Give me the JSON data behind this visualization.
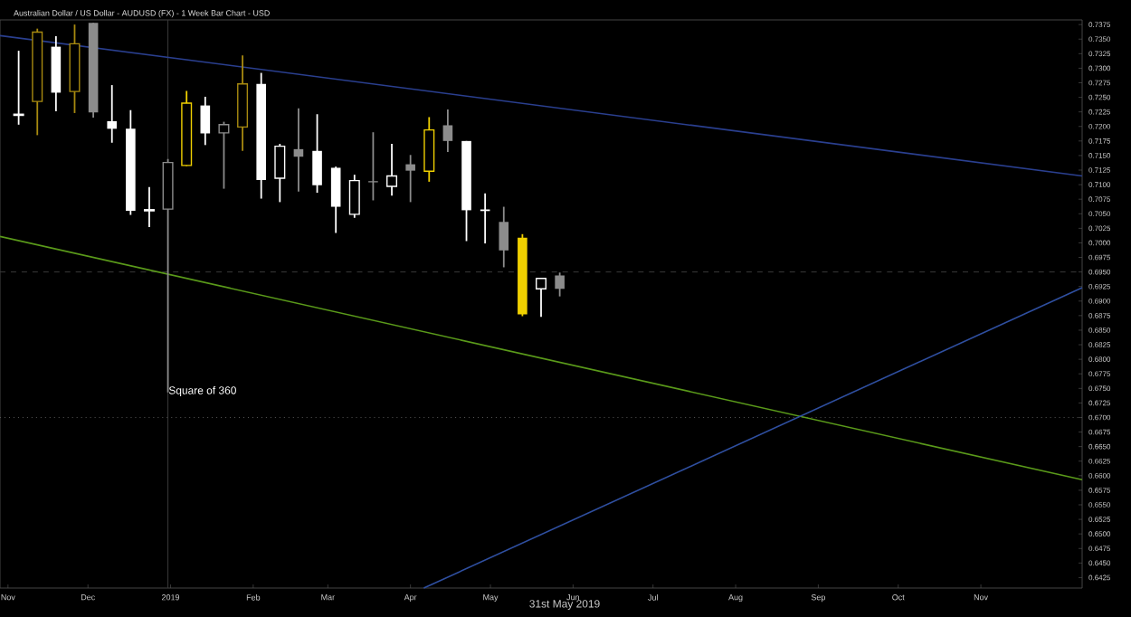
{
  "chart_data": {
    "type": "candlestick",
    "title": "Australian Dollar / US Dollar - AUDUSD (FX) - 1 Week Bar Chart - USD",
    "x": [
      "2018-11-05",
      "2018-11-12",
      "2018-11-19",
      "2018-11-26",
      "2018-12-03",
      "2018-12-10",
      "2018-12-17",
      "2018-12-24",
      "2018-12-31",
      "2019-01-07",
      "2019-01-14",
      "2019-01-21",
      "2019-01-28",
      "2019-02-04",
      "2019-02-11",
      "2019-02-18",
      "2019-02-25",
      "2019-03-04",
      "2019-03-11",
      "2019-03-18",
      "2019-03-25",
      "2019-04-01",
      "2019-04-08",
      "2019-04-15",
      "2019-04-22",
      "2019-04-29",
      "2019-05-06",
      "2019-05-13",
      "2019-05-20",
      "2019-05-27"
    ],
    "ohlc": [
      [
        0.7219,
        0.733,
        0.7203,
        0.7221
      ],
      [
        0.7243,
        0.7368,
        0.7185,
        0.7362
      ],
      [
        0.7337,
        0.7355,
        0.7226,
        0.7258
      ],
      [
        0.726,
        0.7375,
        0.7223,
        0.7342
      ],
      [
        0.7378,
        0.7378,
        0.7215,
        0.7224
      ],
      [
        0.7209,
        0.7271,
        0.7172,
        0.7196
      ],
      [
        0.7196,
        0.7228,
        0.7048,
        0.7055
      ],
      [
        0.7055,
        0.7096,
        0.7027,
        0.7057
      ],
      [
        0.7058,
        0.7144,
        0.6743,
        0.7138
      ],
      [
        0.7133,
        0.7261,
        0.7132,
        0.724
      ],
      [
        0.7236,
        0.7251,
        0.7168,
        0.7188
      ],
      [
        0.7189,
        0.7208,
        0.7093,
        0.7203
      ],
      [
        0.7199,
        0.7322,
        0.7158,
        0.7273
      ],
      [
        0.7273,
        0.7292,
        0.7076,
        0.7108
      ],
      [
        0.7111,
        0.717,
        0.707,
        0.7166
      ],
      [
        0.7161,
        0.7231,
        0.7088,
        0.7148
      ],
      [
        0.7158,
        0.7221,
        0.7086,
        0.7099
      ],
      [
        0.7129,
        0.7131,
        0.7017,
        0.7062
      ],
      [
        0.7049,
        0.7117,
        0.7043,
        0.7107
      ],
      [
        0.7106,
        0.719,
        0.7073,
        0.7104
      ],
      [
        0.7097,
        0.717,
        0.7081,
        0.7115
      ],
      [
        0.7135,
        0.7151,
        0.707,
        0.7124
      ],
      [
        0.7123,
        0.7216,
        0.7105,
        0.7194
      ],
      [
        0.7202,
        0.7229,
        0.7156,
        0.7175
      ],
      [
        0.7175,
        0.7175,
        0.7003,
        0.7056
      ],
      [
        0.7056,
        0.7085,
        0.6999,
        0.7056
      ],
      [
        0.7036,
        0.7062,
        0.6958,
        0.6987
      ],
      [
        0.7009,
        0.7015,
        0.6874,
        0.6877
      ],
      [
        0.6921,
        0.6939,
        0.6873,
        0.6939
      ],
      [
        0.6944,
        0.6949,
        0.6908,
        0.6921
      ]
    ],
    "colors": [
      "#ffffff",
      "#a88a10",
      "#ffffff",
      "#a88a10",
      "#8c8c8c",
      "#ffffff",
      "#ffffff",
      "#ffffff",
      "#8c8c8c",
      "#f0d000",
      "#ffffff",
      "#8c8c8c",
      "#a88a10",
      "#ffffff",
      "#ffffff",
      "#8c8c8c",
      "#ffffff",
      "#ffffff",
      "#ffffff",
      "#8c8c8c",
      "#ffffff",
      "#8c8c8c",
      "#f0d000",
      "#8c8c8c",
      "#ffffff",
      "#ffffff",
      "#8c8c8c",
      "#f0d000",
      "#ffffff",
      "#8c8c8c"
    ],
    "series": [
      {
        "type": "line",
        "color": "#2a3f8f",
        "x": [
          "2018-10-29",
          "2019-12-09"
        ],
        "values": [
          0.7356,
          0.7115
        ]
      },
      {
        "type": "line",
        "color": "#5a9a1a",
        "x": [
          "2018-10-29",
          "2019-12-09"
        ],
        "values": [
          0.7011,
          0.6593
        ]
      },
      {
        "type": "line",
        "color": "#2f4fa0",
        "x": [
          "2019-04-06",
          "2019-12-09"
        ],
        "values": [
          0.6407,
          0.6923
        ]
      }
    ],
    "ref_lines": [
      {
        "axis": "y",
        "value": 0.695,
        "color": "#3a3a3a",
        "line_style": "dashed"
      },
      {
        "axis": "y",
        "value": 0.67,
        "color": "#5a5a5a",
        "line_style": "dotted"
      },
      {
        "axis": "x",
        "value": "2018-12-31",
        "color": "#3a3a3a",
        "line_style": "solid"
      }
    ],
    "annotations": [
      "Square of 360",
      "31st May 2019"
    ],
    "xlim": [
      "2018-10-29",
      "2019-12-09"
    ],
    "xticks": [
      {
        "value": "2018-11-01",
        "label": "Nov"
      },
      {
        "value": "2018-12-01",
        "label": "Dec"
      },
      {
        "value": "2019-01-01",
        "label": "2019"
      },
      {
        "value": "2019-02-01",
        "label": "Feb"
      },
      {
        "value": "2019-03-01",
        "label": "Mar"
      },
      {
        "value": "2019-04-01",
        "label": "Apr"
      },
      {
        "value": "2019-05-01",
        "label": "May"
      },
      {
        "value": "2019-06-01",
        "label": "Jun"
      },
      {
        "value": "2019-07-01",
        "label": "Jul"
      },
      {
        "value": "2019-08-01",
        "label": "Aug"
      },
      {
        "value": "2019-09-01",
        "label": "Sep"
      },
      {
        "value": "2019-10-01",
        "label": "Oct"
      },
      {
        "value": "2019-11-01",
        "label": "Nov"
      }
    ],
    "ylim": [
      0.6407,
      0.7383
    ],
    "yticks": [
      {
        "value": 0.6425,
        "label": "0.6425"
      },
      {
        "value": 0.645,
        "label": "0.6450"
      },
      {
        "value": 0.6475,
        "label": "0.6475"
      },
      {
        "value": 0.65,
        "label": "0.6500"
      },
      {
        "value": 0.6525,
        "label": "0.6525"
      },
      {
        "value": 0.655,
        "label": "0.6550"
      },
      {
        "value": 0.6575,
        "label": "0.6575"
      },
      {
        "value": 0.66,
        "label": "0.6600"
      },
      {
        "value": 0.6625,
        "label": "0.6625"
      },
      {
        "value": 0.665,
        "label": "0.6650"
      },
      {
        "value": 0.6675,
        "label": "0.6675"
      },
      {
        "value": 0.67,
        "label": "0.6700"
      },
      {
        "value": 0.6725,
        "label": "0.6725"
      },
      {
        "value": 0.675,
        "label": "0.6750"
      },
      {
        "value": 0.6775,
        "label": "0.6775"
      },
      {
        "value": 0.68,
        "label": "0.6800"
      },
      {
        "value": 0.6825,
        "label": "0.6825"
      },
      {
        "value": 0.685,
        "label": "0.6850"
      },
      {
        "value": 0.6875,
        "label": "0.6875"
      },
      {
        "value": 0.69,
        "label": "0.6900"
      },
      {
        "value": 0.6925,
        "label": "0.6925"
      },
      {
        "value": 0.695,
        "label": "0.6950"
      },
      {
        "value": 0.6975,
        "label": "0.6975"
      },
      {
        "value": 0.7,
        "label": "0.7000"
      },
      {
        "value": 0.7025,
        "label": "0.7025"
      },
      {
        "value": 0.705,
        "label": "0.7050"
      },
      {
        "value": 0.7075,
        "label": "0.7075"
      },
      {
        "value": 0.71,
        "label": "0.7100"
      },
      {
        "value": 0.7125,
        "label": "0.7125"
      },
      {
        "value": 0.715,
        "label": "0.7150"
      },
      {
        "value": 0.7175,
        "label": "0.7175"
      },
      {
        "value": 0.72,
        "label": "0.7200"
      },
      {
        "value": 0.7225,
        "label": "0.7225"
      },
      {
        "value": 0.725,
        "label": "0.7250"
      },
      {
        "value": 0.7275,
        "label": "0.7275"
      },
      {
        "value": 0.73,
        "label": "0.7300"
      },
      {
        "value": 0.7325,
        "label": "0.7325"
      },
      {
        "value": 0.735,
        "label": "0.7350"
      },
      {
        "value": 0.7375,
        "label": "0.7375"
      }
    ]
  }
}
